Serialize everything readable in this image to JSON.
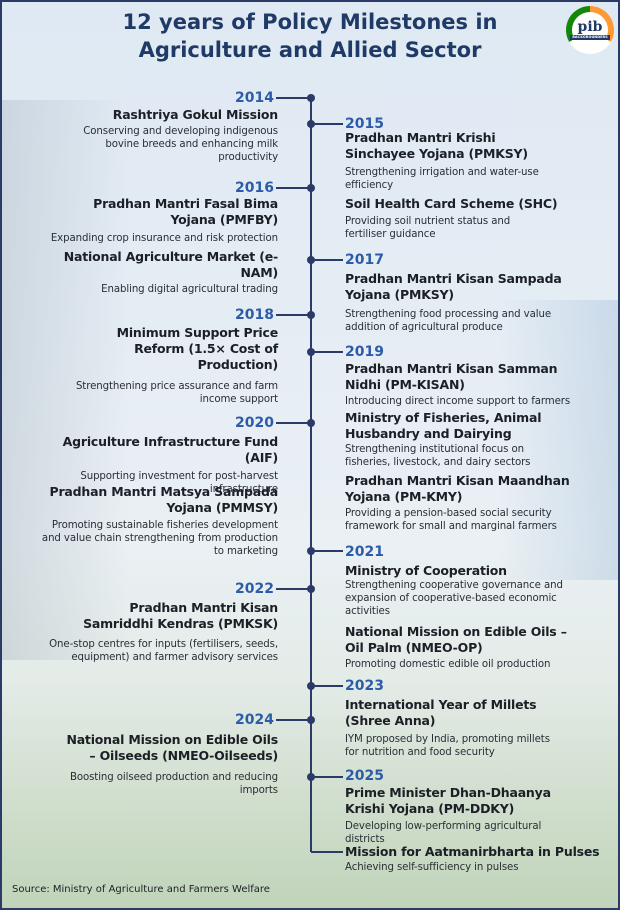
{
  "title": "12 years of Policy Milestones in Agriculture and Allied Sector",
  "logo": {
    "mark": "pib",
    "sub": "BACKGROUNDERS"
  },
  "years": {
    "y2014": "2014",
    "y2015": "2015",
    "y2016": "2016",
    "y2017": "2017",
    "y2018": "2018",
    "y2019": "2019",
    "y2020": "2020",
    "y2021": "2021",
    "y2022": "2022",
    "y2023": "2023",
    "y2024": "2024",
    "y2025": "2025"
  },
  "items": {
    "gokul": {
      "title": "Rashtriya Gokul Mission",
      "desc": "Conserving and developing indigenous bovine breeds and enhancing milk productivity"
    },
    "pmksy": {
      "title": "Pradhan Mantri Krishi Sinchayee Yojana (PMKSY)",
      "desc": "Strengthening irrigation and water-use efficiency"
    },
    "shc": {
      "title": "Soil Health Card Scheme (SHC)",
      "desc": "Providing soil nutrient status and fertiliser guidance"
    },
    "pmfby": {
      "title": "Pradhan Mantri Fasal Bima Yojana (PMFBY)",
      "desc": "Expanding crop insurance and risk protection"
    },
    "enam": {
      "title": "National Agriculture Market (e-NAM)",
      "desc": "Enabling digital agricultural trading"
    },
    "sampada": {
      "title": "Pradhan Mantri Kisan Sampada Yojana (PMKSY)",
      "desc": "Strengthening food processing and value addition of agricultural produce"
    },
    "msp": {
      "title": "Minimum Support Price Reform (1.5× Cost of Production)",
      "desc": "Strengthening price assurance and farm income support"
    },
    "pmkisan": {
      "title": "Pradhan Mantri Kisan Samman Nidhi (PM-KISAN)",
      "desc": "Introducing direct income support to farmers"
    },
    "fisheries": {
      "title": "Ministry of Fisheries, Animal Husbandry and Dairying",
      "desc": "Strengthening institutional focus on fisheries, livestock, and dairy sectors"
    },
    "pmkmy": {
      "title": "Pradhan Mantri Kisan Maandhan Yojana (PM-KMY)",
      "desc": "Providing a pension-based social security framework for small and marginal farmers"
    },
    "aif": {
      "title": "Agriculture Infrastructure Fund (AIF)",
      "desc": "Supporting investment for post-harvest infrastructure"
    },
    "pmmsy": {
      "title": "Pradhan Mantri Matsya Sampada Yojana (PMMSY)",
      "desc": "Promoting sustainable fisheries development and value chain strengthening from production to marketing"
    },
    "coop": {
      "title": "Ministry of Cooperation",
      "desc": "Strengthening cooperative governance and expansion of cooperative-based economic activities"
    },
    "nmeoop": {
      "title": "National Mission on Edible Oils – Oil Palm (NMEO-OP)",
      "desc": "Promoting domestic edible oil production"
    },
    "pmksk": {
      "title": "Pradhan Mantri Kisan Samriddhi Kendras (PMKSK)",
      "desc": "One-stop centres for inputs (fertilisers, seeds, equipment) and farmer advisory services"
    },
    "millets": {
      "title": "International Year of Millets (Shree Anna)",
      "desc": "IYM proposed by India, promoting millets for nutrition and food security"
    },
    "nmeoos": {
      "title": "National Mission on Edible Oils – Oilseeds (NMEO-Oilseeds)",
      "desc": "Boosting oilseed production and reducing imports"
    },
    "pmddky": {
      "title": "Prime Minister Dhan-Dhaanya Krishi Yojana (PM-DDKY)",
      "desc": "Developing low-performing agricultural districts"
    },
    "pulses": {
      "title": "Mission for Aatmanirbharta in Pulses",
      "desc": "Achieving self-sufficiency in pulses"
    }
  },
  "source": "Source: Ministry of Agriculture and Farmers Welfare",
  "colors": {
    "title": "#1f3a66",
    "year": "#2c5ca8",
    "line": "#2b3a67"
  }
}
